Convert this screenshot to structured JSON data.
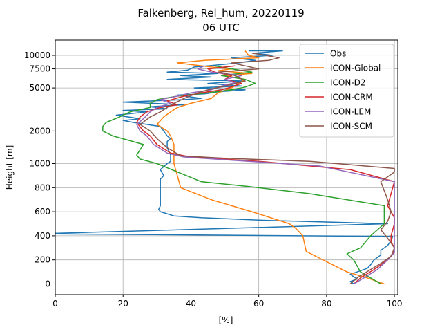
{
  "chart_data": {
    "type": "line",
    "title": "Falkenberg, Rel_hum, 20220119",
    "subtitle": "06 UTC",
    "xlabel": "[%]",
    "ylabel": "Height [m]",
    "xlim": [
      0,
      101
    ],
    "x_ticks": [
      0,
      20,
      40,
      60,
      80,
      100
    ],
    "y_scale": "piecewise: linear 0-1000 m, logarithmic above 1000 m",
    "y_ticks": [
      {
        "value": 0,
        "label": "0"
      },
      {
        "value": 200,
        "label": "200"
      },
      {
        "value": 400,
        "label": "400"
      },
      {
        "value": 600,
        "label": "600"
      },
      {
        "value": 800,
        "label": "800"
      },
      {
        "value": 1000,
        "label": "1000"
      },
      {
        "value": 2000,
        "label": "2000"
      },
      {
        "value": 5000,
        "label": "5000"
      },
      {
        "value": 7500,
        "label": "7500"
      },
      {
        "value": 10000,
        "label": "10000"
      }
    ],
    "grid": true,
    "legend_position": "top-right",
    "series": [
      {
        "name": "Obs",
        "color": "#1f77b4",
        "points": [
          [
            88,
            0
          ],
          [
            87,
            20
          ],
          [
            89,
            40
          ],
          [
            88,
            60
          ],
          [
            87,
            80
          ],
          [
            88,
            90
          ],
          [
            90,
            110
          ],
          [
            92,
            130
          ],
          [
            93,
            160
          ],
          [
            94,
            200
          ],
          [
            96,
            240
          ],
          [
            96,
            280
          ],
          [
            98,
            320
          ],
          [
            99,
            360
          ],
          [
            99.5,
            395
          ],
          [
            0,
            415
          ],
          [
            0,
            420
          ],
          [
            98,
            500
          ],
          [
            60,
            530
          ],
          [
            43,
            550
          ],
          [
            35,
            565
          ],
          [
            31,
            600
          ],
          [
            30.5,
            620
          ],
          [
            31,
            650
          ],
          [
            31,
            700
          ],
          [
            31,
            850
          ],
          [
            31,
            870
          ],
          [
            32,
            900
          ],
          [
            31,
            950
          ],
          [
            33,
            1000
          ],
          [
            34,
            1050
          ],
          [
            34,
            1200
          ],
          [
            33,
            1400
          ],
          [
            33,
            1600
          ],
          [
            34,
            1700
          ],
          [
            33,
            1800
          ],
          [
            32,
            2000
          ],
          [
            31,
            2200
          ],
          [
            27,
            2300
          ],
          [
            23,
            2400
          ],
          [
            20,
            2500
          ],
          [
            25,
            2600
          ],
          [
            18,
            2800
          ],
          [
            27,
            3000
          ],
          [
            20,
            3100
          ],
          [
            33,
            3200
          ],
          [
            28,
            3350
          ],
          [
            38,
            3500
          ],
          [
            20,
            3700
          ],
          [
            38,
            3900
          ],
          [
            43,
            4000
          ],
          [
            36,
            4300
          ],
          [
            44,
            4400
          ],
          [
            48,
            4600
          ],
          [
            56,
            4800
          ],
          [
            41,
            5000
          ],
          [
            55,
            5200
          ],
          [
            45,
            5500
          ],
          [
            56,
            5800
          ],
          [
            33,
            6000
          ],
          [
            46,
            6300
          ],
          [
            37,
            6500
          ],
          [
            48,
            6800
          ],
          [
            33,
            7000
          ],
          [
            39,
            7300
          ],
          [
            41,
            7800
          ],
          [
            45,
            8000
          ],
          [
            54,
            8500
          ],
          [
            59,
            9000
          ],
          [
            52,
            9500
          ],
          [
            64,
            10000
          ],
          [
            59,
            10500
          ],
          [
            67,
            11000
          ],
          [
            57,
            11000
          ]
        ]
      },
      {
        "name": "ICON-Global",
        "color": "#ff7f0e",
        "points": [
          [
            97,
            0
          ],
          [
            92,
            50
          ],
          [
            86,
            100
          ],
          [
            74,
            270
          ],
          [
            73,
            400
          ],
          [
            71,
            460
          ],
          [
            69,
            500
          ],
          [
            58,
            600
          ],
          [
            46,
            700
          ],
          [
            37,
            800
          ],
          [
            36,
            900
          ],
          [
            35,
            1000
          ],
          [
            35,
            1200
          ],
          [
            35,
            1500
          ],
          [
            34,
            1800
          ],
          [
            33,
            2000
          ],
          [
            30,
            2300
          ],
          [
            32,
            2700
          ],
          [
            34,
            3000
          ],
          [
            36,
            3300
          ],
          [
            40,
            3600
          ],
          [
            46,
            4000
          ],
          [
            48,
            4500
          ],
          [
            52,
            5000
          ],
          [
            54,
            5500
          ],
          [
            56,
            6000
          ],
          [
            50,
            6500
          ],
          [
            58,
            6800
          ],
          [
            48,
            7200
          ],
          [
            52,
            7500
          ],
          [
            46,
            7800
          ],
          [
            36,
            8500
          ],
          [
            44,
            9000
          ],
          [
            60,
            9500
          ],
          [
            57,
            10000
          ],
          [
            56,
            11000
          ]
        ]
      },
      {
        "name": "ICON-D2",
        "color": "#2ca02c",
        "points": [
          [
            96,
            0
          ],
          [
            93,
            50
          ],
          [
            90,
            100
          ],
          [
            88,
            200
          ],
          [
            86,
            250
          ],
          [
            90,
            300
          ],
          [
            93,
            400
          ],
          [
            97,
            500
          ],
          [
            97,
            600
          ],
          [
            97,
            650
          ],
          [
            75,
            750
          ],
          [
            57,
            810
          ],
          [
            43,
            850
          ],
          [
            30,
            1000
          ],
          [
            25,
            1100
          ],
          [
            24,
            1200
          ],
          [
            26,
            1500
          ],
          [
            17,
            1800
          ],
          [
            14,
            2000
          ],
          [
            14,
            2200
          ],
          [
            15,
            2400
          ],
          [
            19,
            2700
          ],
          [
            22,
            3000
          ],
          [
            28,
            3300
          ],
          [
            28,
            3600
          ],
          [
            30,
            3900
          ],
          [
            36,
            4200
          ],
          [
            45,
            4500
          ],
          [
            52,
            4800
          ],
          [
            56,
            5100
          ],
          [
            59,
            5500
          ],
          [
            56,
            6000
          ],
          [
            49,
            6500
          ],
          [
            58,
            7000
          ],
          [
            52,
            7500
          ],
          [
            47,
            8000
          ]
        ]
      },
      {
        "name": "ICON-CRM",
        "color": "#d62728",
        "points": [
          [
            88,
            0
          ],
          [
            90,
            50
          ],
          [
            94,
            120
          ],
          [
            98,
            200
          ],
          [
            99.5,
            250
          ],
          [
            100,
            300
          ],
          [
            99,
            350
          ],
          [
            99,
            400
          ],
          [
            100,
            500
          ],
          [
            100,
            550
          ],
          [
            98,
            650
          ],
          [
            99,
            750
          ],
          [
            100,
            850
          ],
          [
            87,
            950
          ],
          [
            60,
            1050
          ],
          [
            40,
            1150
          ],
          [
            34,
            1250
          ],
          [
            30,
            1500
          ],
          [
            28,
            1800
          ],
          [
            26,
            2000
          ],
          [
            24,
            2400
          ],
          [
            25,
            2700
          ],
          [
            27,
            3000
          ],
          [
            31,
            3300
          ],
          [
            36,
            3500
          ],
          [
            33,
            3800
          ],
          [
            38,
            4200
          ],
          [
            43,
            4500
          ],
          [
            49,
            4800
          ],
          [
            51,
            5000
          ],
          [
            55,
            5500
          ],
          [
            50,
            6000
          ],
          [
            52,
            6500
          ],
          [
            47,
            7000
          ],
          [
            45,
            7500
          ],
          [
            53,
            8000
          ]
        ]
      },
      {
        "name": "ICON-LEM",
        "color": "#9467bd",
        "points": [
          [
            88,
            0
          ],
          [
            91,
            50
          ],
          [
            95,
            120
          ],
          [
            98,
            200
          ],
          [
            100,
            260
          ],
          [
            100,
            400
          ],
          [
            100,
            600
          ],
          [
            100,
            850
          ],
          [
            78,
            980
          ],
          [
            57,
            1050
          ],
          [
            38,
            1150
          ],
          [
            33,
            1250
          ],
          [
            29,
            1500
          ],
          [
            27,
            1800
          ],
          [
            25,
            2000
          ],
          [
            24,
            2300
          ],
          [
            26,
            2600
          ],
          [
            28,
            3000
          ],
          [
            30,
            3300
          ],
          [
            34,
            3600
          ],
          [
            31,
            3900
          ],
          [
            36,
            4200
          ],
          [
            40,
            4500
          ],
          [
            46,
            4800
          ],
          [
            49,
            5200
          ],
          [
            53,
            5600
          ],
          [
            50,
            6000
          ],
          [
            55,
            6500
          ],
          [
            46,
            7000
          ],
          [
            42,
            7500
          ],
          [
            44,
            8000
          ]
        ]
      },
      {
        "name": "ICON-SCM",
        "color": "#8c564b",
        "points": [
          [
            87,
            0
          ],
          [
            89,
            50
          ],
          [
            93,
            120
          ],
          [
            96,
            170
          ],
          [
            99,
            230
          ],
          [
            100,
            300
          ],
          [
            98,
            380
          ],
          [
            96,
            450
          ],
          [
            98,
            520
          ],
          [
            99,
            600
          ],
          [
            98,
            700
          ],
          [
            96,
            850
          ],
          [
            100,
            930
          ],
          [
            100,
            960
          ],
          [
            75,
            1050
          ],
          [
            50,
            1120
          ],
          [
            37,
            1180
          ],
          [
            33,
            1400
          ],
          [
            30,
            1700
          ],
          [
            28,
            2000
          ],
          [
            25,
            2300
          ],
          [
            28,
            2700
          ],
          [
            31,
            3000
          ],
          [
            33,
            3300
          ],
          [
            35,
            3600
          ],
          [
            38,
            4000
          ],
          [
            42,
            4500
          ],
          [
            45,
            4800
          ],
          [
            50,
            5200
          ],
          [
            56,
            5800
          ],
          [
            53,
            6500
          ],
          [
            48,
            7000
          ],
          [
            60,
            7500
          ],
          [
            56,
            8000
          ],
          [
            52,
            8500
          ],
          [
            63,
            9000
          ],
          [
            66,
            9500
          ],
          [
            62,
            10000
          ],
          [
            58,
            10500
          ]
        ]
      }
    ]
  }
}
